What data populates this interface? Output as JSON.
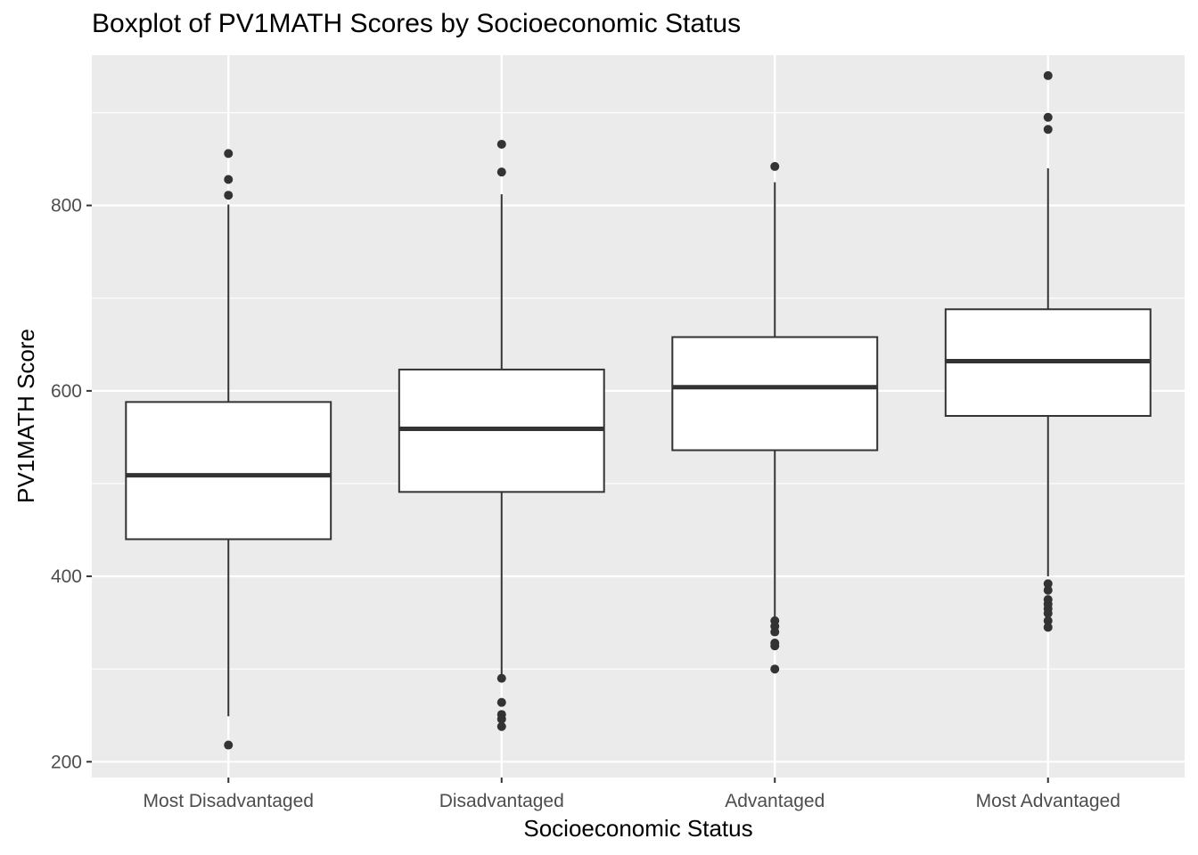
{
  "chart_data": {
    "type": "boxplot",
    "title": "Boxplot of PV1MATH Scores by Socioeconomic Status",
    "xlabel": "Socioeconomic Status",
    "ylabel": "PV1MATH Score",
    "ylim": [
      183,
      962
    ],
    "yticks": [
      200,
      400,
      600,
      800
    ],
    "grid": true,
    "categories": [
      "Most Disadvantaged",
      "Disadvantaged",
      "Advantaged",
      "Most Advantaged"
    ],
    "boxes": [
      {
        "category": "Most Disadvantaged",
        "whisker_low": 249,
        "q1": 440,
        "median": 509,
        "q3": 588,
        "whisker_high": 801,
        "outliers": [
          218,
          811,
          828,
          856
        ]
      },
      {
        "category": "Disadvantaged",
        "whisker_low": 292,
        "q1": 491,
        "median": 559,
        "q3": 623,
        "whisker_high": 812,
        "outliers": [
          238,
          246,
          251,
          264,
          290,
          836,
          866
        ]
      },
      {
        "category": "Advantaged",
        "whisker_low": 355,
        "q1": 536,
        "median": 604,
        "q3": 658,
        "whisker_high": 825,
        "outliers": [
          300,
          325,
          328,
          340,
          346,
          352,
          842
        ]
      },
      {
        "category": "Most Advantaged",
        "whisker_low": 400,
        "q1": 573,
        "median": 632,
        "q3": 688,
        "whisker_high": 840,
        "outliers": [
          345,
          352,
          360,
          365,
          370,
          375,
          385,
          392,
          882,
          895,
          940
        ]
      }
    ],
    "colors": {
      "panel": "#ebebeb",
      "grid": "#ffffff",
      "box_fill": "#ffffff",
      "box_line": "#333333",
      "outlier": "#333333"
    }
  }
}
